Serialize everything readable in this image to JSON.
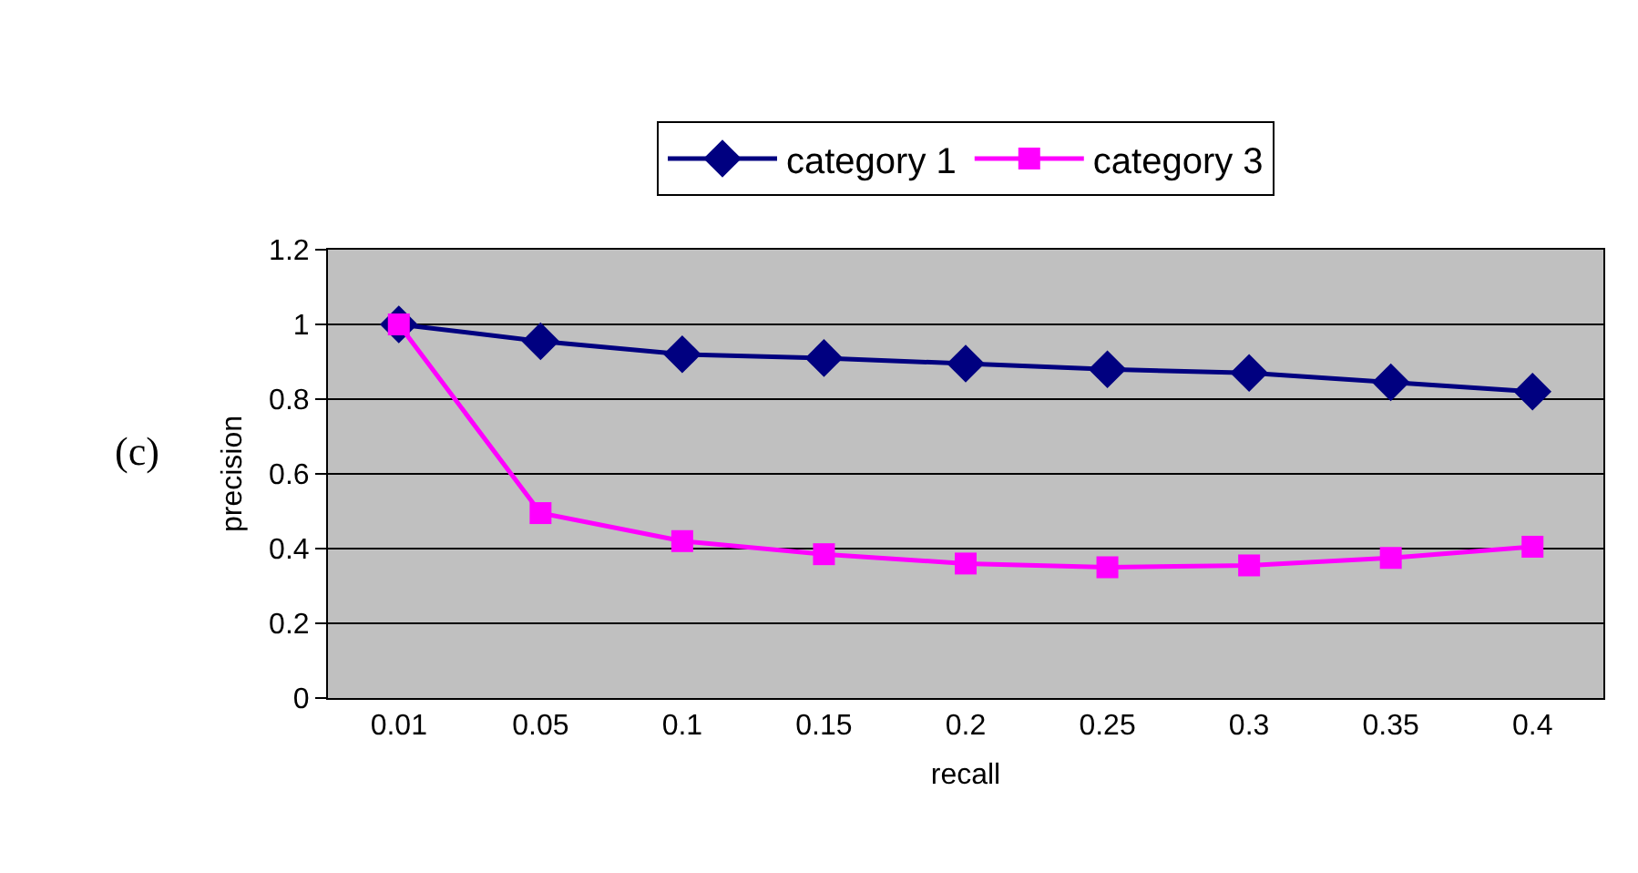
{
  "chart_data": {
    "type": "line",
    "categories": [
      "0.01",
      "0.05",
      "0.1",
      "0.15",
      "0.2",
      "0.25",
      "0.3",
      "0.35",
      "0.4"
    ],
    "series": [
      {
        "name": "category 1",
        "color": "#000080",
        "marker": "diamond",
        "values": [
          1,
          0.955,
          0.92,
          0.91,
          0.895,
          0.88,
          0.87,
          0.845,
          0.82
        ]
      },
      {
        "name": "category 3",
        "color": "#ff00ff",
        "marker": "square",
        "values": [
          1,
          0.495,
          0.42,
          0.385,
          0.36,
          0.35,
          0.355,
          0.375,
          0.405
        ]
      }
    ],
    "xlabel": "recall",
    "ylabel": "precision",
    "ylim": [
      0,
      1.2
    ],
    "yticks": [
      0,
      0.2,
      0.4,
      0.6,
      0.8,
      1,
      1.2
    ],
    "grid": "y",
    "legend": "top",
    "line_style": "solid",
    "annotations": [
      "(c)"
    ]
  }
}
